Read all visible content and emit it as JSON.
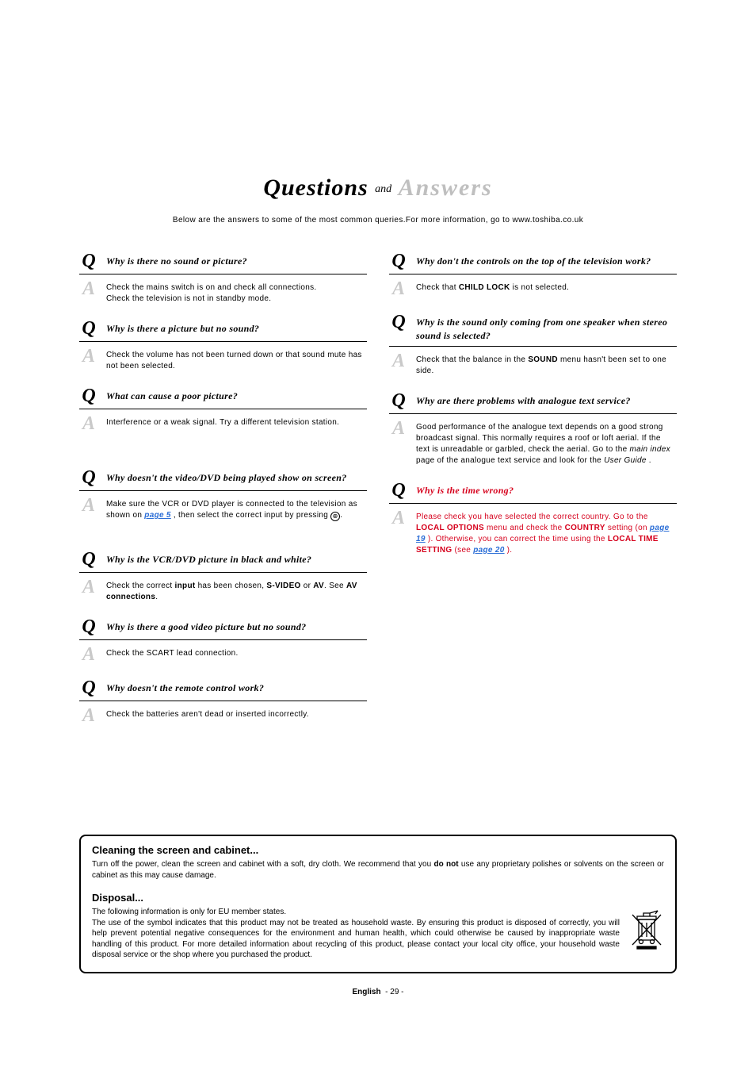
{
  "title": {
    "questions": "Questions",
    "and": "and",
    "answers": "Answers"
  },
  "intro": "Below are the answers to some of the most common queries.For more information, go to www.toshiba.co.uk",
  "left": [
    {
      "q": "Why is there no sound or picture?",
      "a": "Check the mains switch is on and check all connections.\nCheck the television is not in standby mode."
    },
    {
      "q": "Why is there a picture but no sound?",
      "a": "Check the volume has not been turned down or that sound mute has not been selected."
    },
    {
      "q": "What can cause a poor picture?",
      "a": "Interference or a weak signal. Try a different television station."
    },
    {
      "q": "Why doesn't the video/DVD being played show on screen?",
      "a_html": "Make sure the VCR or DVD player is connected to the television as shown on <span class='blue-link'>page 5</span> , then select the correct input by pressing <span class='input-icon'>⊕</span>."
    },
    {
      "q": "Why is the VCR/DVD picture in black and white?",
      "a_html": "Check the correct <b>input</b> has been chosen, <b>S-VIDEO</b> or <b>AV</b>. See <b>AV connections</b>."
    },
    {
      "q": "Why is there a good video picture but no sound?",
      "a": "Check the SCART lead connection."
    },
    {
      "q": "Why doesn't the remote control work?",
      "a": "Check the batteries aren't dead or inserted incorrectly."
    }
  ],
  "right": [
    {
      "q": "Why don't the controls on the top of the television work?",
      "a_html": "Check that <b>CHILD LOCK</b> is not selected."
    },
    {
      "q": "Why is the sound only coming from one speaker when stereo sound is selected?",
      "a_html": "Check that the balance in the <b>SOUND</b> menu hasn't been set to one side."
    },
    {
      "q": "Why are there problems with analogue text service?",
      "a_html": "Good performance of the analogue text depends on a good strong broadcast signal. This normally requires a roof or loft aerial. If the text is unreadable or garbled, check the aerial. Go to the <i>main index</i> page of the analogue text service and look for the <i>User Guide</i> ."
    },
    {
      "q": "Why is the time wrong?",
      "q_red": true,
      "a_html": "<span class='red'>Please check you have selected the correct country.  Go to the <b>LOCAL OPTIONS</b> menu and check the <b>COUNTRY</b> setting (on <span class='blue-link'>page 19</span> ). Otherwise, you can correct the time using the <b>LOCAL TIME SETTING</b> (see <span class='blue-link'>page 20</span> ).</span>"
    }
  ],
  "cleaning": {
    "heading": "Cleaning the screen and cabinet...",
    "text_html": "Turn off the power, clean the screen and cabinet with a soft, dry cloth. We recommend that you <b>do not</b> use any proprietary polishes or solvents on the screen or cabinet as this may cause damage."
  },
  "disposal": {
    "heading": "Disposal...",
    "text": "The following information is only for EU member states.\nThe use of the symbol indicates that this product may not be treated as household waste. By ensuring this product is disposed of correctly, you will help prevent potential negative consequences for the environment and human health, which could otherwise be caused by inappropriate waste handling of this product. For more detailed information about recycling of this product, please contact your local city office, your household waste disposal service or the shop where you purchased the product."
  },
  "footer": {
    "lang": "English",
    "page": "- 29 -"
  }
}
